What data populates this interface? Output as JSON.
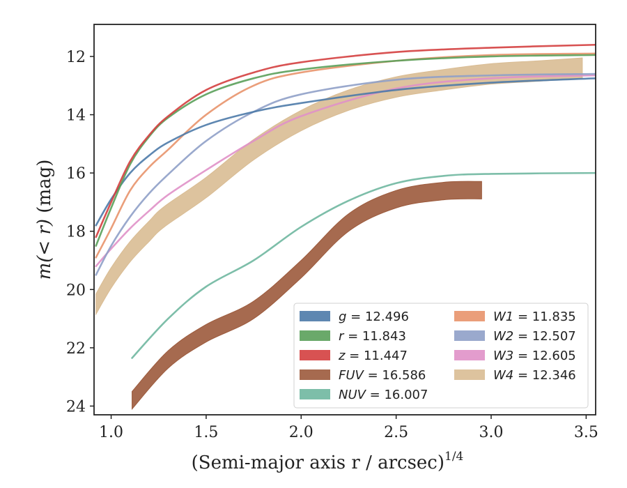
{
  "chart_data": {
    "type": "line",
    "xlabel": "(Semi-major axis r / arcsec)",
    "xlabel_superscript": "1/4",
    "ylabel_prefix": "m(< r)",
    "ylabel_unit": "(mag)",
    "xlim": [
      0.91,
      3.55
    ],
    "ylim": [
      24.3,
      10.9
    ],
    "y_inverted": true,
    "xticks": [
      1.0,
      1.5,
      2.0,
      2.5,
      3.0,
      3.5
    ],
    "xtick_labels": [
      "1.0",
      "1.5",
      "2.0",
      "2.5",
      "3.0",
      "3.5"
    ],
    "yticks": [
      12,
      14,
      16,
      18,
      20,
      22,
      24
    ],
    "ytick_labels": [
      "12",
      "14",
      "16",
      "18",
      "20",
      "22",
      "24"
    ],
    "grid": false,
    "legend_position": "lower-right",
    "series": [
      {
        "name": "g = 12.496",
        "color": "#4c7aa8",
        "band": 0.06,
        "x": [
          0.92,
          1.0,
          1.1,
          1.2,
          1.3,
          1.5,
          1.75,
          2.0,
          2.5,
          3.0,
          3.55
        ],
        "y": [
          17.8,
          16.9,
          16.0,
          15.4,
          14.95,
          14.35,
          13.9,
          13.6,
          13.15,
          12.9,
          12.75
        ]
      },
      {
        "name": "r = 11.843",
        "color": "#5aa05a",
        "band": 0.06,
        "x": [
          0.92,
          1.0,
          1.1,
          1.2,
          1.3,
          1.5,
          1.75,
          2.0,
          2.5,
          3.0,
          3.55
        ],
        "y": [
          18.5,
          17.2,
          15.7,
          14.75,
          14.1,
          13.3,
          12.75,
          12.45,
          12.15,
          12.0,
          11.95
        ]
      },
      {
        "name": "z = 11.447",
        "color": "#d43f3f",
        "band": 0.06,
        "x": [
          0.92,
          1.0,
          1.1,
          1.2,
          1.3,
          1.5,
          1.75,
          2.0,
          2.5,
          3.0,
          3.55
        ],
        "y": [
          18.2,
          17.0,
          15.6,
          14.7,
          14.05,
          13.15,
          12.55,
          12.2,
          11.85,
          11.7,
          11.6
        ]
      },
      {
        "name": "FUV = 16.586",
        "color": "#9c5a3c",
        "band": 0.3,
        "x": [
          1.11,
          1.3,
          1.5,
          1.75,
          2.0,
          2.25,
          2.5,
          2.75,
          2.95
        ],
        "y": [
          23.8,
          22.4,
          21.5,
          20.7,
          19.3,
          17.7,
          16.9,
          16.62,
          16.59
        ]
      },
      {
        "name": "NUV = 16.007",
        "color": "#6fb7a0",
        "band": 0.06,
        "x": [
          1.11,
          1.3,
          1.5,
          1.75,
          2.0,
          2.25,
          2.5,
          2.75,
          3.0,
          3.55
        ],
        "y": [
          22.35,
          21.0,
          19.9,
          19.0,
          17.85,
          16.95,
          16.35,
          16.1,
          16.03,
          16.0
        ]
      },
      {
        "name": "W1 = 11.835",
        "color": "#e8936c",
        "band": 0.06,
        "x": [
          0.92,
          1.0,
          1.1,
          1.2,
          1.3,
          1.5,
          1.75,
          2.0,
          2.5,
          3.0,
          3.55
        ],
        "y": [
          18.9,
          17.9,
          16.6,
          15.8,
          15.2,
          14.0,
          13.0,
          12.55,
          12.15,
          11.95,
          11.9
        ]
      },
      {
        "name": "W2 = 12.507",
        "color": "#8fa0c8",
        "band": 0.06,
        "x": [
          0.92,
          1.0,
          1.1,
          1.2,
          1.3,
          1.5,
          1.75,
          2.0,
          2.5,
          3.0,
          3.55
        ],
        "y": [
          19.5,
          18.5,
          17.5,
          16.7,
          16.05,
          14.9,
          13.9,
          13.3,
          12.8,
          12.65,
          12.6
        ]
      },
      {
        "name": "W3 = 12.605",
        "color": "#e091c8",
        "band": 0.06,
        "x": [
          0.92,
          1.0,
          1.1,
          1.2,
          1.3,
          1.5,
          1.75,
          2.0,
          2.5,
          3.0,
          3.55
        ],
        "y": [
          19.2,
          18.6,
          17.9,
          17.3,
          16.75,
          15.9,
          14.9,
          14.05,
          13.1,
          12.75,
          12.65
        ]
      },
      {
        "name": "W4 = 12.346",
        "color": "#d9bc93",
        "band": 0.35,
        "x": [
          0.92,
          1.0,
          1.1,
          1.2,
          1.28,
          1.5,
          1.75,
          2.0,
          2.25,
          2.5,
          2.75,
          3.0,
          3.25,
          3.48
        ],
        "y": [
          20.5,
          19.6,
          18.7,
          18.0,
          17.5,
          16.5,
          15.2,
          14.2,
          13.5,
          13.05,
          12.8,
          12.6,
          12.5,
          12.4
        ]
      }
    ]
  }
}
